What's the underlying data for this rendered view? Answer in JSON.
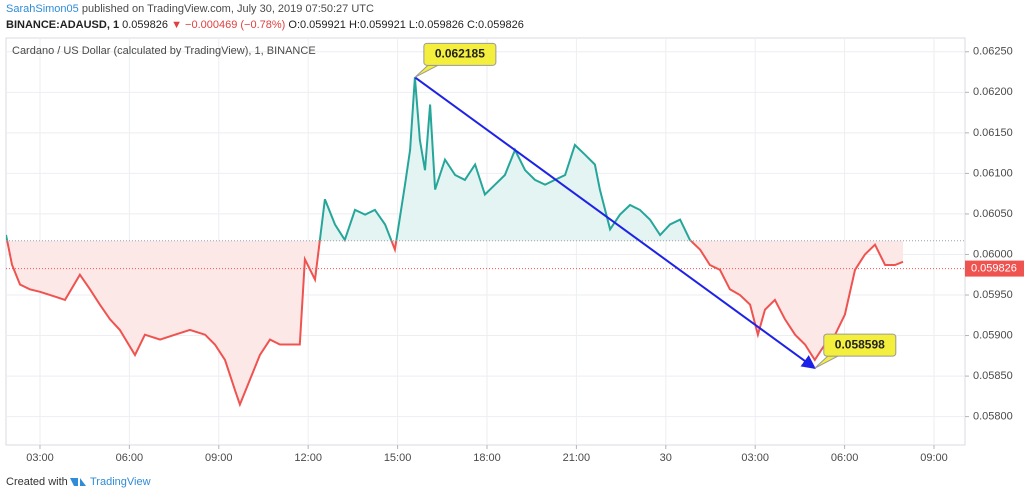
{
  "header": {
    "user": "SarahSimon05",
    "published": "published on TradingView.com, July 30, 2019 07:50:27 UTC",
    "symbol": "BINANCE:ADAUSD, 1",
    "last": "0.059826",
    "change": "▼ −0.000469 (−0.78%)",
    "ohlc": "O:0.059921 H:0.059921 L:0.059826 C:0.059826"
  },
  "footer": {
    "prefix": "Created with",
    "brand": "TradingView"
  },
  "chart_data": {
    "type": "line",
    "title": "Cardano / US Dollar (calculated by TradingView), 1, BINANCE",
    "x": [
      1.86,
      2.06,
      2.33,
      2.66,
      3.0,
      3.5,
      3.84,
      4.34,
      4.68,
      5.01,
      5.35,
      5.68,
      6.19,
      6.52,
      7.03,
      7.53,
      8.03,
      8.54,
      8.87,
      9.21,
      9.54,
      9.71,
      10.05,
      10.38,
      10.72,
      11.05,
      11.39,
      11.72,
      11.89,
      12.23,
      12.56,
      12.9,
      13.23,
      13.57,
      13.91,
      14.24,
      14.58,
      14.91,
      15.25,
      15.42,
      15.58,
      15.75,
      15.92,
      16.09,
      16.26,
      16.59,
      16.93,
      17.26,
      17.6,
      17.93,
      18.27,
      18.6,
      18.94,
      19.28,
      19.61,
      19.95,
      20.28,
      20.62,
      20.95,
      21.29,
      21.62,
      21.79,
      22.13,
      22.46,
      22.8,
      23.13,
      23.47,
      23.81,
      24.14,
      24.48,
      24.81,
      25.15,
      25.48,
      25.82,
      26.15,
      26.49,
      26.83,
      27.09,
      27.33,
      27.66,
      28.0,
      28.34,
      28.67,
      29.0,
      29.34,
      29.68,
      30.01,
      30.35,
      30.68,
      31.02,
      31.36,
      31.69,
      31.96
    ],
    "series": [
      {
        "name": "ADAUSD",
        "values": [
          0.06024,
          0.059874,
          0.05963,
          0.05957,
          0.05954,
          0.05948,
          0.05944,
          0.05975,
          0.05957,
          0.05938,
          0.0592,
          0.05907,
          0.05876,
          0.05901,
          0.05895,
          0.05901,
          0.05907,
          0.05901,
          0.05889,
          0.0587,
          0.05833,
          0.05815,
          0.05846,
          0.05876,
          0.05895,
          0.05889,
          0.05889,
          0.05889,
          0.05994,
          0.05969,
          0.06068,
          0.06037,
          0.06018,
          0.06055,
          0.06049,
          0.06055,
          0.06037,
          0.06006,
          0.06086,
          0.06129,
          0.062185,
          0.06141,
          0.06104,
          0.06185,
          0.0608,
          0.06117,
          0.06098,
          0.06092,
          0.06111,
          0.06074,
          0.06086,
          0.06098,
          0.06129,
          0.06104,
          0.06092,
          0.06086,
          0.06092,
          0.06098,
          0.06135,
          0.06123,
          0.06111,
          0.0608,
          0.06031,
          0.06049,
          0.06061,
          0.06055,
          0.06043,
          0.06024,
          0.06037,
          0.06043,
          0.06018,
          0.06006,
          0.05987,
          0.05981,
          0.05957,
          0.0595,
          0.05938,
          0.05901,
          0.05932,
          0.05944,
          0.0592,
          0.05901,
          0.05889,
          0.0587,
          0.05889,
          0.05901,
          0.05926,
          0.05981,
          0.06,
          0.06012,
          0.05987,
          0.05987,
          0.05991
        ]
      }
    ],
    "baseline": 0.06017,
    "color_above": "#26a69a",
    "color_below": "#ef5350",
    "fill_above": "#e3f4f2",
    "fill_below": "#fde8e8",
    "last_price": 0.059826,
    "xlim": [
      1.86,
      34.04
    ],
    "xticks": [
      {
        "value": 3,
        "label": "03:00"
      },
      {
        "value": 6,
        "label": "06:00"
      },
      {
        "value": 9,
        "label": "09:00"
      },
      {
        "value": 12,
        "label": "12:00"
      },
      {
        "value": 15,
        "label": "15:00"
      },
      {
        "value": 18,
        "label": "18:00"
      },
      {
        "value": 21,
        "label": "21:00"
      },
      {
        "value": 24,
        "label": "30"
      },
      {
        "value": 27,
        "label": "03:00"
      },
      {
        "value": 30,
        "label": "06:00"
      },
      {
        "value": 33,
        "label": "09:00"
      }
    ],
    "ylim": [
      0.05765,
      0.06267
    ],
    "yticks": [
      {
        "value": 0.058,
        "label": "0.05800"
      },
      {
        "value": 0.0585,
        "label": "0.05850"
      },
      {
        "value": 0.059,
        "label": "0.05900"
      },
      {
        "value": 0.0595,
        "label": "0.05950"
      },
      {
        "value": 0.06,
        "label": "0.06000"
      },
      {
        "value": 0.0605,
        "label": "0.06050"
      },
      {
        "value": 0.061,
        "label": "0.06100"
      },
      {
        "value": 0.0615,
        "label": "0.06150"
      },
      {
        "value": 0.062,
        "label": "0.06200"
      },
      {
        "value": 0.0625,
        "label": "0.06250"
      }
    ],
    "grid": true,
    "annotations": [
      {
        "x": 15.58,
        "value": 0.062185
      },
      {
        "x": 29.0,
        "value": 0.058598
      }
    ],
    "arrow_color": "#1e22e6"
  }
}
